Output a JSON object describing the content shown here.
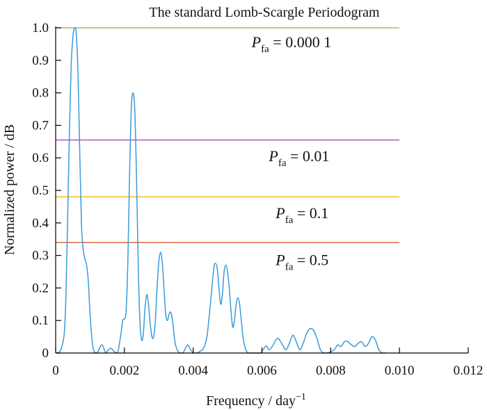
{
  "chart_data": {
    "type": "line",
    "title": "The standard Lomb-Scargle Periodogram",
    "xlabel": "Frequency / day",
    "xlabel_superscript": "−1",
    "ylabel": "Normalized power / dB",
    "xlim": [
      0,
      0.012
    ],
    "ylim": [
      0,
      1.0
    ],
    "x_ticks": [
      "0",
      "0.002",
      "0.004",
      "0.006",
      "0.008",
      "0.010",
      "0.012"
    ],
    "x_tick_values": [
      0,
      0.002,
      0.004,
      0.006,
      0.008,
      0.01,
      0.012
    ],
    "y_ticks": [
      "0",
      "0.1",
      "0.2",
      "0.3",
      "0.4",
      "0.5",
      "0.6",
      "0.7",
      "0.8",
      "0.9",
      "1.0"
    ],
    "y_tick_values": [
      0,
      0.1,
      0.2,
      0.3,
      0.4,
      0.5,
      0.6,
      0.7,
      0.8,
      0.9,
      1.0
    ],
    "series": [
      {
        "color": "#3a9ad9",
        "points": [
          [
            3e-05,
            0.0
          ],
          [
            0.00015,
            0.01
          ],
          [
            0.00025,
            0.06
          ],
          [
            0.0003,
            0.18
          ],
          [
            0.00035,
            0.42
          ],
          [
            0.0004,
            0.68
          ],
          [
            0.00045,
            0.88
          ],
          [
            0.0005,
            0.97
          ],
          [
            0.00055,
            1.0
          ],
          [
            0.0006,
            0.98
          ],
          [
            0.00065,
            0.86
          ],
          [
            0.0007,
            0.62
          ],
          [
            0.00075,
            0.4
          ],
          [
            0.0008,
            0.32
          ],
          [
            0.00085,
            0.29
          ],
          [
            0.0009,
            0.27
          ],
          [
            0.00095,
            0.22
          ],
          [
            0.001,
            0.12
          ],
          [
            0.00105,
            0.05
          ],
          [
            0.0011,
            0.01
          ],
          [
            0.0012,
            0.0
          ],
          [
            0.0013,
            0.02
          ],
          [
            0.00135,
            0.025
          ],
          [
            0.0014,
            0.015
          ],
          [
            0.00145,
            0.0
          ],
          [
            0.0015,
            0.005
          ],
          [
            0.0016,
            0.015
          ],
          [
            0.0017,
            0.005
          ],
          [
            0.0018,
            0.0
          ],
          [
            0.0019,
            0.06
          ],
          [
            0.00195,
            0.1
          ],
          [
            0.002,
            0.105
          ],
          [
            0.00205,
            0.13
          ],
          [
            0.0021,
            0.28
          ],
          [
            0.00215,
            0.55
          ],
          [
            0.0022,
            0.75
          ],
          [
            0.00225,
            0.8
          ],
          [
            0.0023,
            0.75
          ],
          [
            0.00235,
            0.55
          ],
          [
            0.0024,
            0.28
          ],
          [
            0.00245,
            0.1
          ],
          [
            0.0025,
            0.04
          ],
          [
            0.00255,
            0.06
          ],
          [
            0.0026,
            0.14
          ],
          [
            0.00265,
            0.18
          ],
          [
            0.0027,
            0.15
          ],
          [
            0.00275,
            0.09
          ],
          [
            0.0028,
            0.05
          ],
          [
            0.00285,
            0.05
          ],
          [
            0.0029,
            0.1
          ],
          [
            0.00295,
            0.2
          ],
          [
            0.003,
            0.28
          ],
          [
            0.00305,
            0.31
          ],
          [
            0.0031,
            0.28
          ],
          [
            0.00315,
            0.2
          ],
          [
            0.0032,
            0.12
          ],
          [
            0.00325,
            0.1
          ],
          [
            0.0033,
            0.12
          ],
          [
            0.00335,
            0.125
          ],
          [
            0.0034,
            0.1
          ],
          [
            0.00345,
            0.05
          ],
          [
            0.0035,
            0.02
          ],
          [
            0.0036,
            0.0
          ],
          [
            0.0037,
            0.0
          ],
          [
            0.0038,
            0.02
          ],
          [
            0.00385,
            0.025
          ],
          [
            0.0039,
            0.015
          ],
          [
            0.004,
            0.0
          ],
          [
            0.0041,
            0.0
          ],
          [
            0.0042,
            0.005
          ],
          [
            0.0043,
            0.015
          ],
          [
            0.0044,
            0.05
          ],
          [
            0.0045,
            0.15
          ],
          [
            0.0046,
            0.26
          ],
          [
            0.00465,
            0.275
          ],
          [
            0.0047,
            0.26
          ],
          [
            0.00475,
            0.2
          ],
          [
            0.0048,
            0.15
          ],
          [
            0.00485,
            0.18
          ],
          [
            0.0049,
            0.25
          ],
          [
            0.00495,
            0.27
          ],
          [
            0.005,
            0.25
          ],
          [
            0.00505,
            0.2
          ],
          [
            0.0051,
            0.13
          ],
          [
            0.00515,
            0.08
          ],
          [
            0.0052,
            0.1
          ],
          [
            0.00525,
            0.15
          ],
          [
            0.0053,
            0.17
          ],
          [
            0.00535,
            0.15
          ],
          [
            0.0054,
            0.1
          ],
          [
            0.00545,
            0.05
          ],
          [
            0.0055,
            0.02
          ],
          [
            0.0056,
            0.0
          ],
          [
            0.0058,
            0.0
          ],
          [
            0.00595,
            0.0
          ],
          [
            0.006,
            0.005
          ],
          [
            0.0061,
            0.02
          ],
          [
            0.00615,
            0.02
          ],
          [
            0.0062,
            0.01
          ],
          [
            0.0063,
            0.02
          ],
          [
            0.00645,
            0.045
          ],
          [
            0.0066,
            0.025
          ],
          [
            0.0067,
            0.01
          ],
          [
            0.0068,
            0.03
          ],
          [
            0.0069,
            0.055
          ],
          [
            0.007,
            0.035
          ],
          [
            0.0071,
            0.01
          ],
          [
            0.0072,
            0.03
          ],
          [
            0.0073,
            0.06
          ],
          [
            0.0074,
            0.075
          ],
          [
            0.0075,
            0.07
          ],
          [
            0.0076,
            0.045
          ],
          [
            0.0077,
            0.01
          ],
          [
            0.0078,
            0.0
          ],
          [
            0.0079,
            0.0
          ],
          [
            0.0081,
            0.01
          ],
          [
            0.0082,
            0.025
          ],
          [
            0.0083,
            0.02
          ],
          [
            0.0084,
            0.035
          ],
          [
            0.0085,
            0.035
          ],
          [
            0.0086,
            0.025
          ],
          [
            0.0087,
            0.02
          ],
          [
            0.0088,
            0.03
          ],
          [
            0.0089,
            0.035
          ],
          [
            0.009,
            0.02
          ],
          [
            0.0091,
            0.03
          ],
          [
            0.0092,
            0.05
          ],
          [
            0.0093,
            0.04
          ],
          [
            0.0094,
            0.01
          ],
          [
            0.0095,
            0.0
          ],
          [
            0.0096,
            0.0
          ]
        ]
      }
    ],
    "thresholds": [
      {
        "value": 1.0,
        "color": "#8fcc5a",
        "label_main": "P",
        "label_sub": "fa",
        "label_rest": " = 0.000 1",
        "label_x": 0.0057,
        "label_y": 0.94
      },
      {
        "value": 0.655,
        "color": "#b25ec8",
        "label_main": "P",
        "label_sub": "fa",
        "label_rest": " = 0.01",
        "label_x": 0.0062,
        "label_y": 0.59
      },
      {
        "value": 0.48,
        "color": "#f2c12e",
        "label_main": "P",
        "label_sub": "fa",
        "label_rest": " = 0.1",
        "label_x": 0.0064,
        "label_y": 0.415
      },
      {
        "value": 0.34,
        "color": "#e06a3b",
        "label_main": "P",
        "label_sub": "fa",
        "label_rest": " = 0.5",
        "label_x": 0.0064,
        "label_y": 0.27
      }
    ],
    "threshold_x_end": 0.01,
    "grid": false,
    "legend": "none"
  }
}
